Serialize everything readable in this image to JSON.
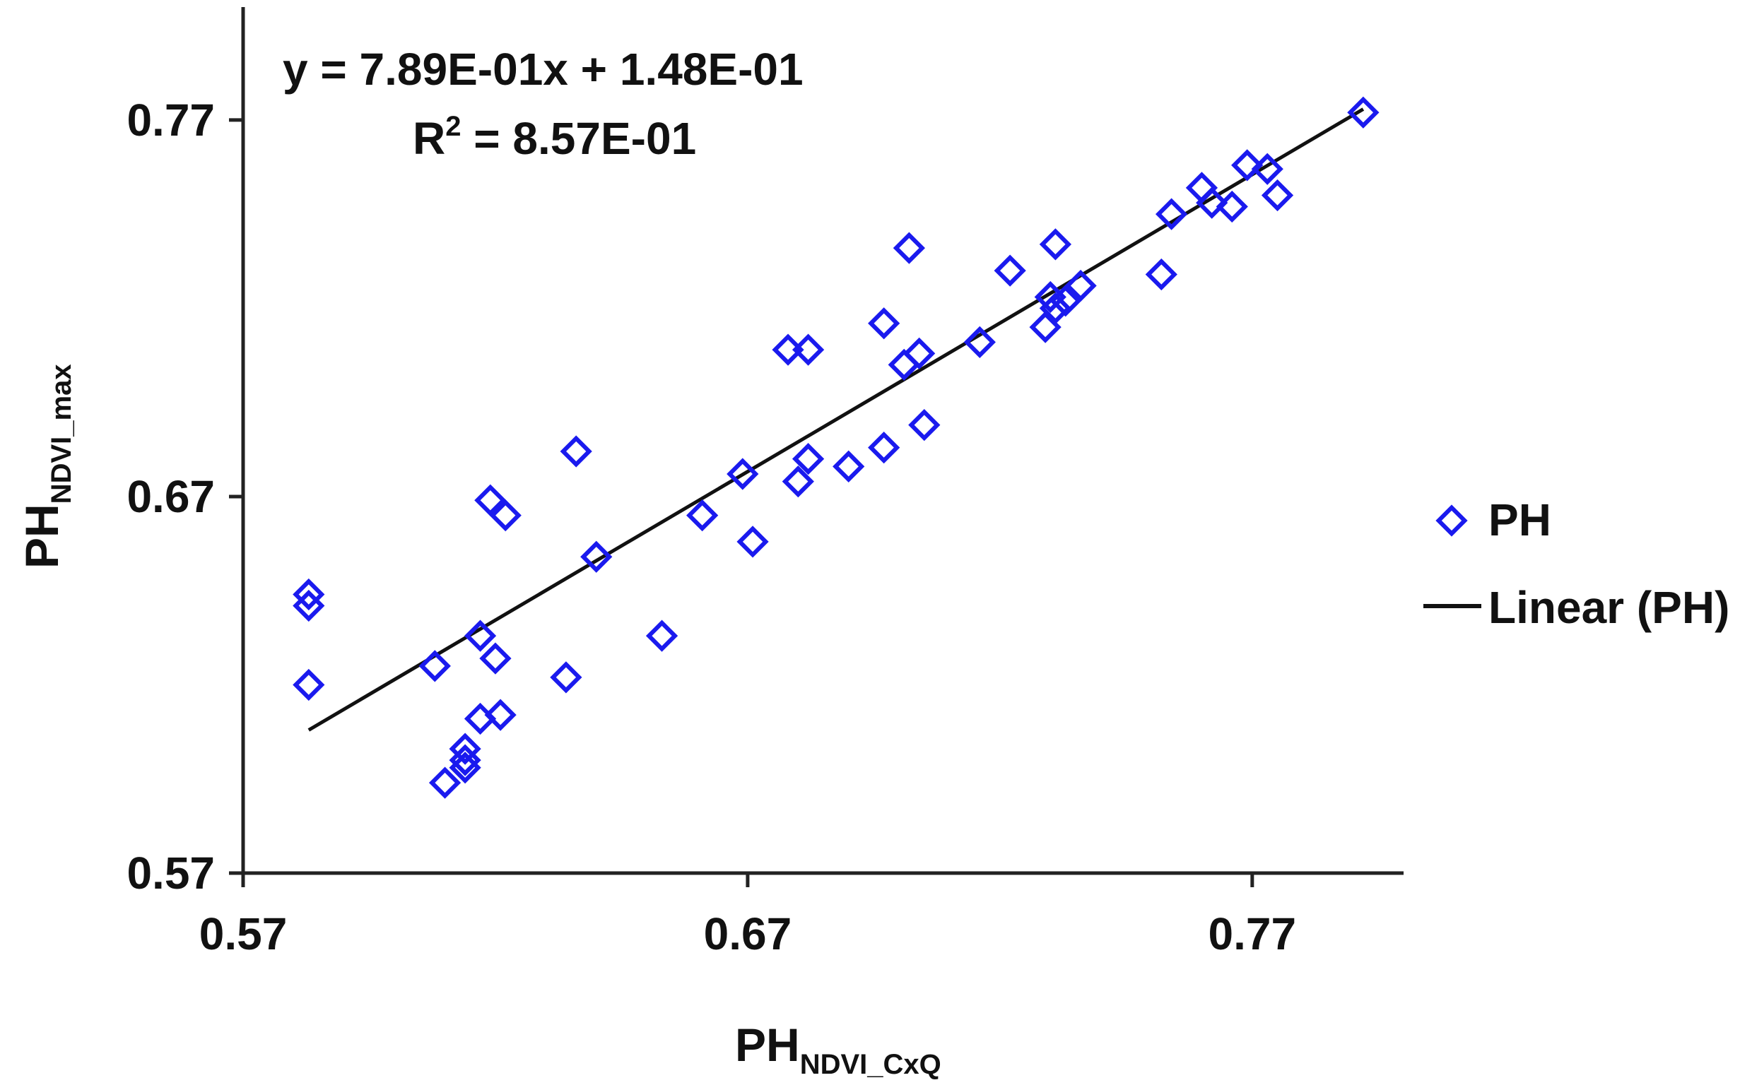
{
  "chart_data": {
    "type": "scatter",
    "xlim": [
      0.57,
      0.8
    ],
    "ylim": [
      0.57,
      0.8
    ],
    "x_ticks": [
      "0.57",
      "0.67",
      "0.77"
    ],
    "y_ticks": [
      "0.57",
      "0.67",
      "0.77"
    ],
    "xlabel": {
      "main": "PH",
      "sub": "NDVI_CxQ"
    },
    "ylabel": {
      "main": "PH",
      "sub": "NDVI_max"
    },
    "equation": {
      "line1": "y = 7.89E-01x + 1.48E-01",
      "r_label": "R",
      "r_sup": "2",
      "r_value": " = 8.57E-01"
    },
    "legend_position": "right",
    "grid": false,
    "series": [
      {
        "name": "PH",
        "marker": "diamond",
        "color": "#1a1aee",
        "points": [
          [
            0.583,
            0.644
          ],
          [
            0.583,
            0.641
          ],
          [
            0.583,
            0.62
          ],
          [
            0.608,
            0.625
          ],
          [
            0.61,
            0.594
          ],
          [
            0.614,
            0.603
          ],
          [
            0.614,
            0.6
          ],
          [
            0.614,
            0.598
          ],
          [
            0.617,
            0.611
          ],
          [
            0.617,
            0.633
          ],
          [
            0.619,
            0.669
          ],
          [
            0.62,
            0.627
          ],
          [
            0.621,
            0.612
          ],
          [
            0.622,
            0.665
          ],
          [
            0.634,
            0.622
          ],
          [
            0.636,
            0.682
          ],
          [
            0.64,
            0.654
          ],
          [
            0.653,
            0.633
          ],
          [
            0.661,
            0.665
          ],
          [
            0.669,
            0.676
          ],
          [
            0.671,
            0.658
          ],
          [
            0.678,
            0.709
          ],
          [
            0.68,
            0.674
          ],
          [
            0.682,
            0.709
          ],
          [
            0.682,
            0.68
          ],
          [
            0.69,
            0.678
          ],
          [
            0.697,
            0.683
          ],
          [
            0.697,
            0.716
          ],
          [
            0.701,
            0.705
          ],
          [
            0.704,
            0.708
          ],
          [
            0.702,
            0.736
          ],
          [
            0.705,
            0.689
          ],
          [
            0.716,
            0.711
          ],
          [
            0.722,
            0.73
          ],
          [
            0.729,
            0.715
          ],
          [
            0.73,
            0.723
          ],
          [
            0.731,
            0.72
          ],
          [
            0.733,
            0.722
          ],
          [
            0.731,
            0.737
          ],
          [
            0.736,
            0.726
          ],
          [
            0.752,
            0.729
          ],
          [
            0.754,
            0.745
          ],
          [
            0.76,
            0.752
          ],
          [
            0.762,
            0.748
          ],
          [
            0.766,
            0.747
          ],
          [
            0.769,
            0.758
          ],
          [
            0.773,
            0.757
          ],
          [
            0.775,
            0.75
          ],
          [
            0.792,
            0.772
          ]
        ]
      },
      {
        "name": "Linear (PH)",
        "type": "line",
        "color": "#111111",
        "slope": 0.789,
        "intercept": 0.148,
        "x_range": [
          0.583,
          0.792
        ]
      }
    ]
  }
}
